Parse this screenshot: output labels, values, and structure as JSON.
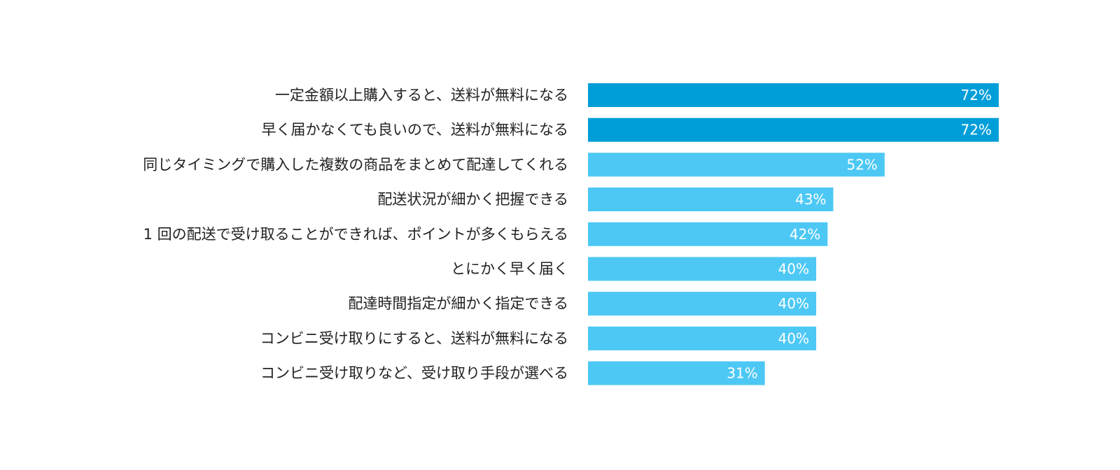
{
  "chart_data": {
    "type": "bar",
    "orientation": "horizontal",
    "categories": [
      "一定金額以上購入すると、送料が無料になる",
      "早く届かなくても良いので、送料が無料になる",
      "同じタイミングで購入した複数の商品をまとめて配達してくれる",
      "配送状況が細かく把握できる",
      "1 回の配送で受け取ることができれば、ポイントが多くもらえる",
      "とにかく早く届く",
      "配達時間指定が細かく指定できる",
      "コンビニ受け取りにすると、送料が無料になる",
      "コンビニ受け取りなど、受け取り手段が選べる"
    ],
    "values": [
      72,
      72,
      52,
      43,
      42,
      40,
      40,
      40,
      31
    ],
    "value_labels": [
      "72%",
      "72%",
      "52%",
      "43%",
      "42%",
      "40%",
      "40%",
      "40%",
      "31%"
    ],
    "highlight_count": 2,
    "xlim": [
      0,
      100
    ],
    "grid": false,
    "legend": "none",
    "colors": {
      "highlight": "#009ed8",
      "normal": "#4dc8f5",
      "label": "#222222",
      "value_text": "#ffffff"
    }
  }
}
